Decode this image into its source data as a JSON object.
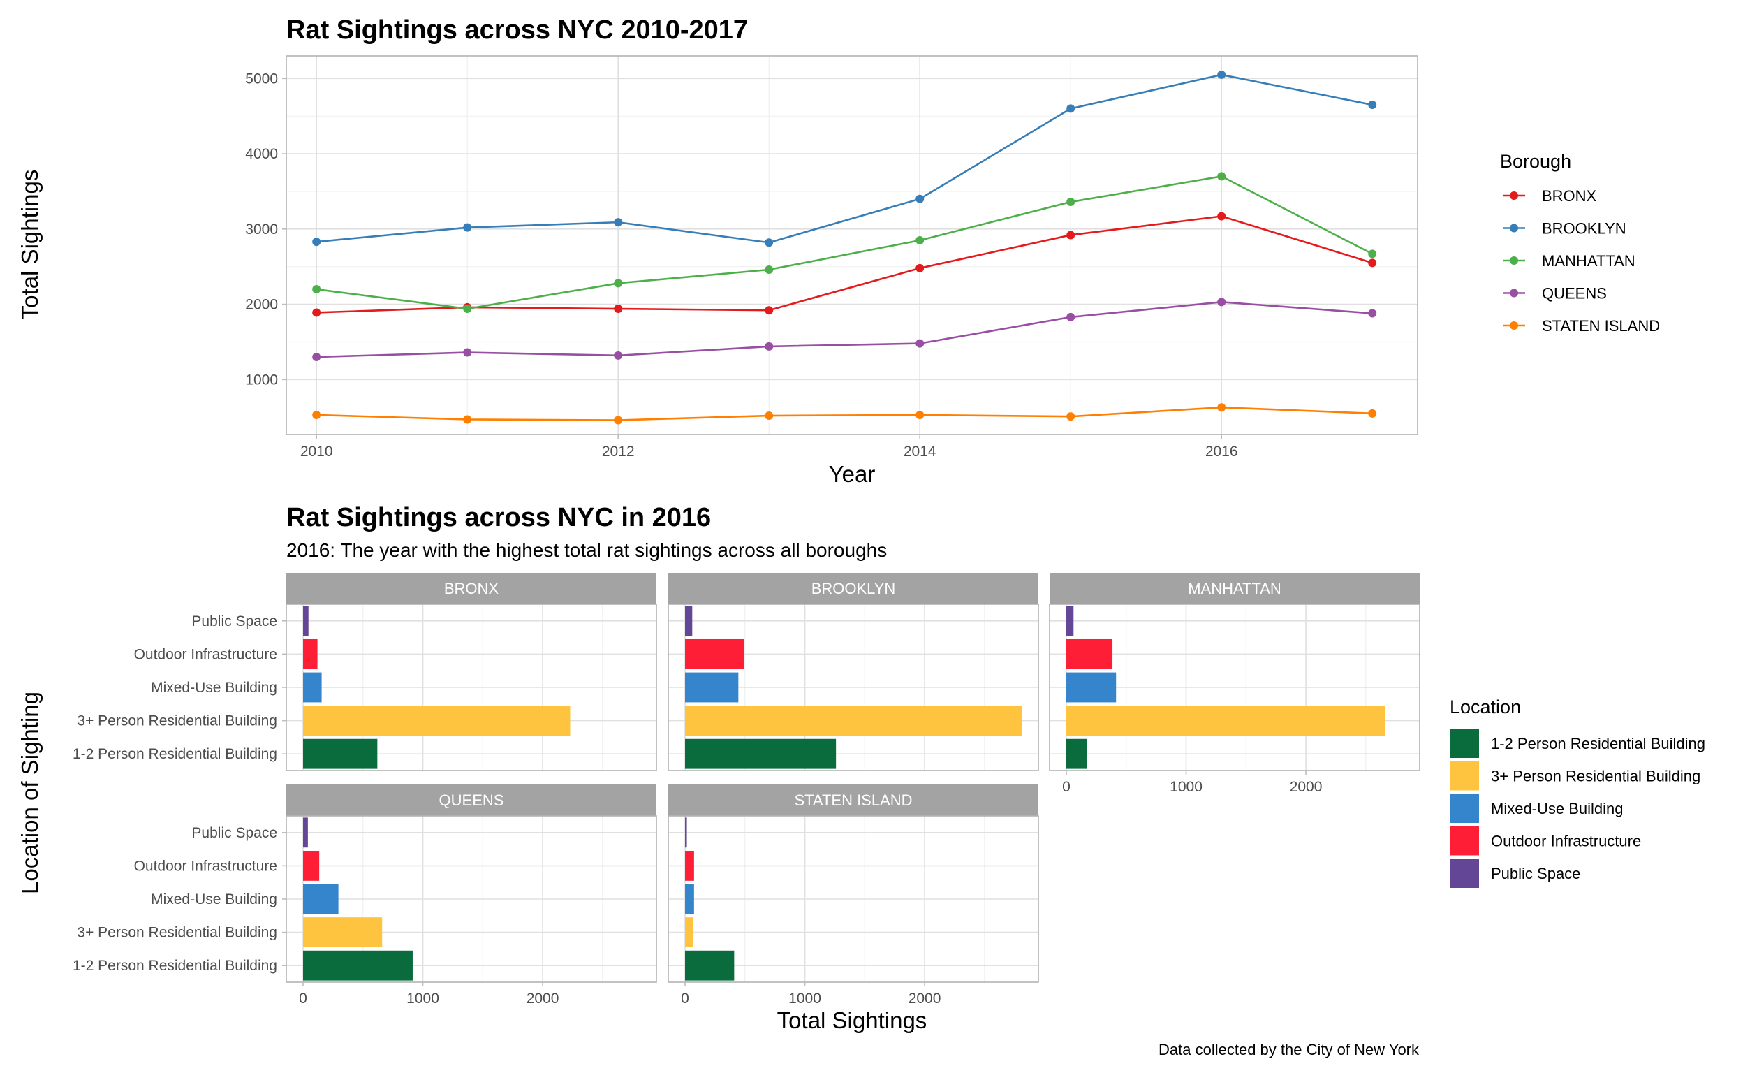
{
  "chart_data": [
    {
      "type": "line",
      "title": "Rat Sightings across NYC 2010-2017",
      "xlabel": "Year",
      "ylabel": "Total Sightings",
      "xlim": [
        2009.8,
        2017.3
      ],
      "ylim": [
        270,
        5300
      ],
      "x_ticks": [
        2010,
        2012,
        2014,
        2016
      ],
      "y_ticks": [
        1000,
        2000,
        3000,
        4000,
        5000
      ],
      "grid": true,
      "legend_title": "Borough",
      "legend_position": "right",
      "x": [
        2010,
        2011,
        2012,
        2013,
        2014,
        2015,
        2016,
        2017
      ],
      "series": [
        {
          "name": "BRONX",
          "color": "#e41a1c",
          "values": [
            1890,
            1960,
            1940,
            1920,
            2480,
            2920,
            3170,
            2550
          ]
        },
        {
          "name": "BROOKLYN",
          "color": "#377eb8",
          "values": [
            2830,
            3020,
            3090,
            2820,
            3400,
            4600,
            5050,
            4650
          ]
        },
        {
          "name": "MANHATTAN",
          "color": "#4daf4a",
          "values": [
            2200,
            1940,
            2280,
            2460,
            2850,
            3360,
            3700,
            2670
          ]
        },
        {
          "name": "QUEENS",
          "color": "#984ea3",
          "values": [
            1300,
            1360,
            1320,
            1440,
            1480,
            1830,
            2030,
            1880
          ]
        },
        {
          "name": "STATEN ISLAND",
          "color": "#ff7f00",
          "values": [
            530,
            470,
            460,
            520,
            530,
            510,
            630,
            550
          ]
        }
      ]
    },
    {
      "type": "bar",
      "orientation": "horizontal",
      "title": "Rat Sightings across NYC in 2016",
      "subtitle": "2016: The year with the highest total rat sightings across all boroughs",
      "xlabel": "Total Sightings",
      "ylabel": "Location of Sighting",
      "xlim": [
        -140,
        2950
      ],
      "x_ticks": [
        0,
        1000,
        2000
      ],
      "grid": true,
      "legend_title": "Location",
      "legend_position": "right",
      "categories": [
        "Public Space",
        "Outdoor Infrastructure",
        "Mixed-Use Building",
        "3+ Person Residential Building",
        "1-2 Person Residential Building"
      ],
      "legend_order": [
        "1-2 Person Residential Building",
        "3+ Person Residential Building",
        "Mixed-Use Building",
        "Outdoor Infrastructure",
        "Public Space"
      ],
      "colors": {
        "1-2 Person Residential Building": "#0a6b3c",
        "3+ Person Residential Building": "#fec440",
        "Mixed-Use Building": "#3585cc",
        "Outdoor Infrastructure": "#fe1f37",
        "Public Space": "#644696"
      },
      "panels": [
        {
          "name": "BRONX",
          "values": [
            45,
            120,
            155,
            2230,
            620
          ]
        },
        {
          "name": "BROOKLYN",
          "values": [
            60,
            490,
            445,
            2810,
            1260
          ]
        },
        {
          "name": "MANHATTAN",
          "values": [
            60,
            385,
            415,
            2660,
            170
          ]
        },
        {
          "name": "QUEENS",
          "values": [
            40,
            135,
            295,
            660,
            915
          ]
        },
        {
          "name": "STATEN ISLAND",
          "values": [
            15,
            75,
            75,
            70,
            410
          ]
        }
      ],
      "caption": "Data collected by the City of New York"
    }
  ]
}
